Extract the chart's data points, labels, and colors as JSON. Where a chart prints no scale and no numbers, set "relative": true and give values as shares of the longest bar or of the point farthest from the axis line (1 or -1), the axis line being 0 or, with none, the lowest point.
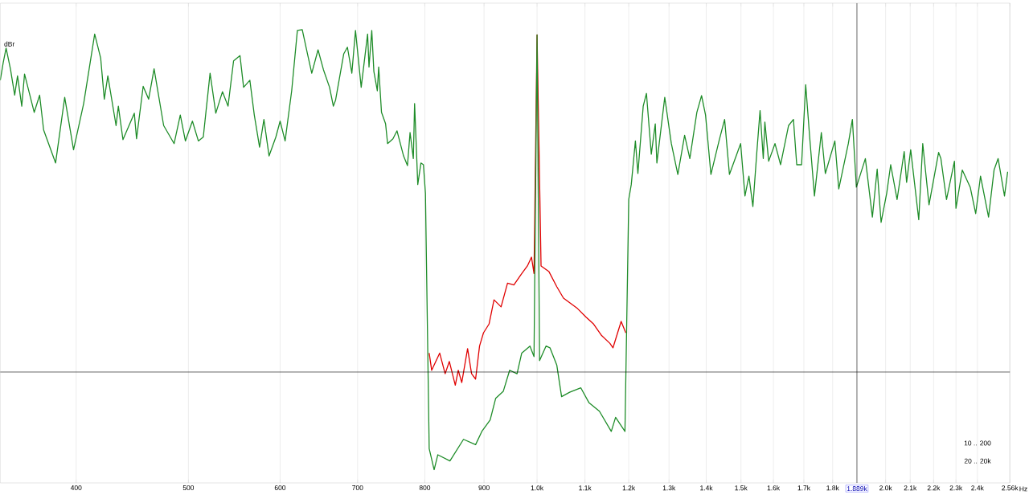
{
  "chart_data": {
    "type": "line",
    "relative": true,
    "log": "x",
    "grid": "x",
    "ylabel": "dBr",
    "xlim": [
      344,
      2560
    ],
    "xticks": [
      400,
      500,
      600,
      700,
      800,
      900,
      {
        "value": 1000,
        "label": "1.0k"
      },
      {
        "value": 1100,
        "label": "1.1k"
      },
      {
        "value": 1200,
        "label": "1.2k"
      },
      {
        "value": 1300,
        "label": "1.3k"
      },
      {
        "value": 1400,
        "label": "1.4k"
      },
      {
        "value": 1500,
        "label": "1.5k"
      },
      {
        "value": 1600,
        "label": "1.6k"
      },
      {
        "value": 1700,
        "label": "1.7k"
      },
      {
        "value": 1800,
        "label": "1.8k"
      },
      {
        "value": 2000,
        "label": "2.0k"
      },
      {
        "value": 2100,
        "label": "2.1k"
      },
      {
        "value": 2200,
        "label": "2.2k"
      },
      {
        "value": 2300,
        "label": "2.3k"
      },
      {
        "value": 2400,
        "label": "2.4k"
      },
      {
        "value": 2560,
        "label": "2.56k"
      }
    ],
    "xlabel": "Hz",
    "ref_lines": [
      {
        "axis": "x",
        "value": 1889,
        "label": "1.889k",
        "color": "#000000"
      },
      {
        "axis": "y",
        "value": 0.222,
        "color": "#000000"
      }
    ],
    "annotations": [
      "10 .. 200",
      "20 .. 20k"
    ],
    "series": [
      {
        "color": "#e00000",
        "x": [
          807,
          811,
          824,
          833,
          840,
          850,
          855,
          861,
          871,
          878,
          885,
          892,
          899,
          909,
          918,
          931,
          943,
          955,
          969,
          981,
          989,
          994,
          1000,
          1008,
          1024,
          1040,
          1054,
          1084,
          1102,
          1119,
          1137,
          1156,
          1163,
          1182,
          1193
        ],
        "values": [
          0.265,
          0.226,
          0.265,
          0.218,
          0.246,
          0.192,
          0.226,
          0.198,
          0.275,
          0.218,
          0.206,
          0.281,
          0.311,
          0.331,
          0.386,
          0.37,
          0.424,
          0.42,
          0.444,
          0.463,
          0.483,
          0.446,
          0.988,
          0.463,
          0.45,
          0.416,
          0.39,
          0.366,
          0.347,
          0.331,
          0.305,
          0.287,
          0.277,
          0.337,
          0.311
        ]
      },
      {
        "color": "#1e8c28",
        "x": [
          344,
          346,
          348,
          351,
          354,
          356,
          359,
          361,
          368,
          372,
          375,
          384,
          391,
          398,
          406,
          415,
          420,
          423,
          426,
          433,
          435,
          439,
          449,
          451,
          457,
          462,
          467,
          476,
          486,
          492,
          497,
          504,
          510,
          515,
          522,
          528,
          535,
          541,
          547,
          554,
          558,
          565,
          570,
          576,
          581,
          587,
          595,
          600,
          606,
          614,
          621,
          627,
          634,
          639,
          647,
          654,
          662,
          667,
          670,
          681,
          686,
          692,
          697,
          705,
          714,
          716,
          720,
          723,
          728,
          730,
          734,
          740,
          743,
          751,
          757,
          767,
          773,
          777,
          782,
          784,
          789,
          794,
          798,
          801,
          807,
          815,
          821,
          841,
          864,
          885,
          896,
          911,
          921,
          935,
          947,
          961,
          970,
          986,
          994,
          1000,
          1005,
          1018,
          1026,
          1040,
          1050,
          1067,
          1091,
          1109,
          1132,
          1159,
          1169,
          1191,
          1200,
          1206,
          1216,
          1222,
          1235,
          1243,
          1255,
          1265,
          1269,
          1289,
          1306,
          1323,
          1341,
          1355,
          1374,
          1387,
          1398,
          1413,
          1436,
          1452,
          1466,
          1499,
          1512,
          1524,
          1536,
          1548,
          1558,
          1568,
          1573,
          1585,
          1605,
          1623,
          1649,
          1665,
          1676,
          1692,
          1706,
          1719,
          1736,
          1760,
          1774,
          1808,
          1822,
          1857,
          1872,
          1887,
          1921,
          1948,
          1967,
          1982,
          2004,
          2020,
          2046,
          2075,
          2085,
          2102,
          2136,
          2153,
          2180,
          2222,
          2232,
          2257,
          2293,
          2300,
          2329,
          2366,
          2392,
          2415,
          2454,
          2481,
          2501,
          2533,
          2549
        ],
        "values": [
          0.885,
          0.925,
          0.958,
          0.911,
          0.851,
          0.895,
          0.826,
          0.899,
          0.812,
          0.851,
          0.772,
          0.697,
          0.846,
          0.727,
          0.832,
          0.99,
          0.935,
          0.842,
          0.895,
          0.782,
          0.826,
          0.75,
          0.81,
          0.752,
          0.871,
          0.842,
          0.911,
          0.782,
          0.741,
          0.806,
          0.747,
          0.792,
          0.747,
          0.756,
          0.901,
          0.81,
          0.859,
          0.826,
          0.929,
          0.941,
          0.869,
          0.885,
          0.806,
          0.733,
          0.796,
          0.713,
          0.756,
          0.792,
          0.747,
          0.861,
          0.998,
          1,
          0.941,
          0.901,
          0.954,
          0.909,
          0.869,
          0.826,
          0.84,
          0.945,
          0.96,
          0.901,
          0.998,
          0.869,
          0.99,
          0.915,
          0.998,
          0.905,
          0.861,
          0.915,
          0.812,
          0.786,
          0.741,
          0.752,
          0.77,
          0.713,
          0.691,
          0.766,
          0.707,
          0.832,
          0.648,
          0.697,
          0.693,
          0.628,
          0.048,
          0,
          0.034,
          0.02,
          0.069,
          0.057,
          0.087,
          0.113,
          0.162,
          0.178,
          0.226,
          0.218,
          0.265,
          0.281,
          0.257,
          0.988,
          0.248,
          0.281,
          0.277,
          0.238,
          0.166,
          0.176,
          0.186,
          0.152,
          0.133,
          0.087,
          0.119,
          0.087,
          0.614,
          0.648,
          0.747,
          0.673,
          0.826,
          0.855,
          0.717,
          0.786,
          0.697,
          0.846,
          0.741,
          0.671,
          0.76,
          0.707,
          0.812,
          0.85,
          0.806,
          0.671,
          0.747,
          0.796,
          0.671,
          0.741,
          0.622,
          0.667,
          0.598,
          0.721,
          0.816,
          0.707,
          0.79,
          0.701,
          0.741,
          0.693,
          0.782,
          0.796,
          0.693,
          0.693,
          0.875,
          0.76,
          0.622,
          0.766,
          0.673,
          0.747,
          0.638,
          0.741,
          0.796,
          0.642,
          0.707,
          0.574,
          0.683,
          0.562,
          0.628,
          0.693,
          0.614,
          0.723,
          0.653,
          0.727,
          0.568,
          0.741,
          0.602,
          0.721,
          0.707,
          0.614,
          0.701,
          0.594,
          0.681,
          0.642,
          0.582,
          0.667,
          0.574,
          0.681,
          0.707,
          0.622,
          0.677
        ]
      }
    ]
  }
}
